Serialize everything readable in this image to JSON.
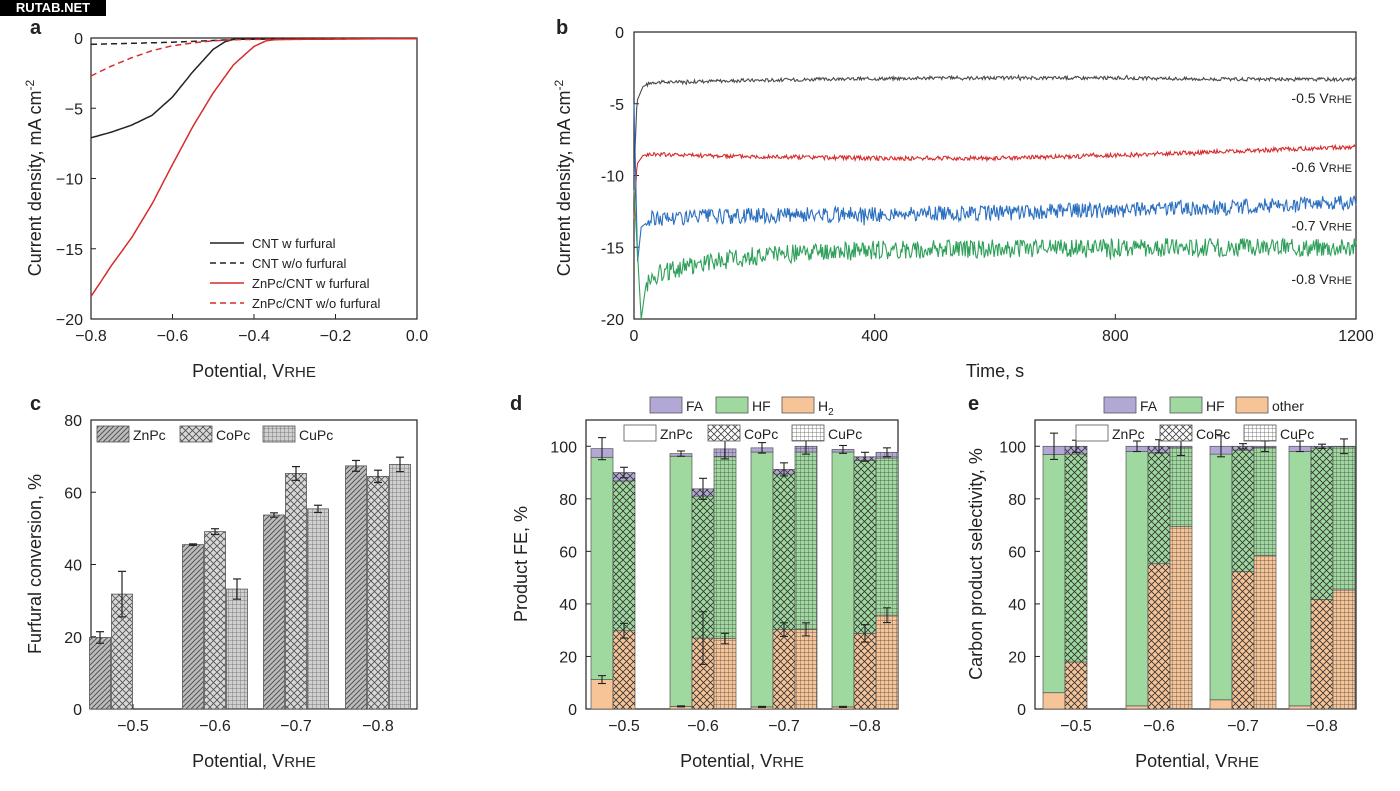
{
  "watermark": "RUTAB.NET",
  "colors": {
    "black": "#222222",
    "red": "#d62c2c",
    "gray": "#4a4a4a",
    "blue": "#2b6fc0",
    "green": "#2fa05a",
    "fa": "#b3a7d6",
    "hf": "#9fd99f",
    "orange": "#f7c498"
  },
  "panels": {
    "a": {
      "letter": "a",
      "ylabel": "Current density, mA cm",
      "ylabel_sup": "-2",
      "xlabel": "Potential, V",
      "xlabel_sub": "RHE",
      "xticks": [
        "−0.8",
        "−0.6",
        "−0.4",
        "−0.2",
        "0.0"
      ],
      "yticks": [
        "0",
        "−5",
        "−10",
        "−15",
        "−20"
      ]
    },
    "b": {
      "letter": "b",
      "ylabel": "Current density, mA cm",
      "ylabel_sup": "-2",
      "xlabel": "Time, s",
      "xticks": [
        "0",
        "400",
        "800",
        "1200"
      ],
      "yticks": [
        "0",
        "-5",
        "-10",
        "-15",
        "-20"
      ]
    },
    "c": {
      "letter": "c",
      "ylabel": "Furfural conversion, %",
      "xlabel": "Potential, V",
      "xlabel_sub": "RHE",
      "xticks": [
        "−0.5",
        "−0.6",
        "−0.7",
        "−0.8"
      ],
      "yticks": [
        "0",
        "20",
        "40",
        "60",
        "80"
      ]
    },
    "d": {
      "letter": "d",
      "ylabel": "Product FE, %",
      "xlabel": "Potential, V",
      "xlabel_sub": "RHE",
      "xticks": [
        "−0.5",
        "−0.6",
        "−0.7",
        "−0.8"
      ],
      "yticks": [
        "0",
        "20",
        "40",
        "60",
        "80",
        "100"
      ],
      "legend_products": [
        "FA",
        "HF",
        "H"
      ],
      "legend_sub": "2",
      "legend_catalysts": [
        "ZnPc",
        "CoPc",
        "CuPc"
      ]
    },
    "e": {
      "letter": "e",
      "ylabel": "Carbon product selectivity, %",
      "xlabel": "Potential, V",
      "xlabel_sub": "RHE",
      "xticks": [
        "−0.5",
        "−0.6",
        "−0.7",
        "−0.8"
      ],
      "yticks": [
        "0",
        "20",
        "40",
        "60",
        "80",
        "100"
      ],
      "legend_products": [
        "FA",
        "HF",
        "other"
      ],
      "legend_catalysts": [
        "ZnPc",
        "CoPc",
        "CuPc"
      ]
    }
  },
  "chart_data": [
    {
      "type": "line",
      "panel": "a",
      "xlabel": "Potential, VRHE",
      "ylabel": "Current density, mA cm-2",
      "xlim": [
        -0.8,
        0.0
      ],
      "ylim": [
        -20,
        0
      ],
      "series": [
        {
          "name": "CNT w furfural",
          "color": "#222222",
          "dash": false,
          "x": [
            -0.8,
            -0.75,
            -0.7,
            -0.65,
            -0.6,
            -0.55,
            -0.5,
            -0.47,
            -0.45,
            -0.4,
            -0.3,
            -0.2,
            -0.1,
            0.0
          ],
          "y": [
            -7.1,
            -6.7,
            -6.2,
            -5.5,
            -4.2,
            -2.4,
            -0.8,
            -0.25,
            -0.1,
            -0.08,
            -0.06,
            -0.05,
            -0.04,
            -0.03
          ]
        },
        {
          "name": "CNT w/o furfural",
          "color": "#222222",
          "dash": true,
          "x": [
            -0.8,
            -0.7,
            -0.6,
            -0.5,
            -0.45,
            -0.4,
            -0.3,
            -0.2,
            -0.1,
            0.0
          ],
          "y": [
            -0.45,
            -0.38,
            -0.3,
            -0.18,
            -0.1,
            -0.07,
            -0.05,
            -0.04,
            -0.03,
            -0.02
          ]
        },
        {
          "name": "ZnPc/CNT w furfural",
          "color": "#d62c2c",
          "dash": false,
          "x": [
            -0.8,
            -0.75,
            -0.7,
            -0.65,
            -0.6,
            -0.55,
            -0.5,
            -0.45,
            -0.4,
            -0.37,
            -0.35,
            -0.3,
            -0.2,
            -0.1,
            0.0
          ],
          "y": [
            -18.4,
            -16.2,
            -14.2,
            -11.8,
            -9.0,
            -6.3,
            -3.9,
            -1.9,
            -0.6,
            -0.2,
            -0.12,
            -0.1,
            -0.08,
            -0.06,
            -0.05
          ]
        },
        {
          "name": "ZnPc/CNT w/o furfural",
          "color": "#d62c2c",
          "dash": true,
          "x": [
            -0.8,
            -0.75,
            -0.7,
            -0.65,
            -0.6,
            -0.55,
            -0.5,
            -0.45,
            -0.4,
            -0.3,
            -0.2,
            -0.1,
            0.0
          ],
          "y": [
            -2.7,
            -2.0,
            -1.4,
            -0.9,
            -0.55,
            -0.35,
            -0.2,
            -0.12,
            -0.1,
            -0.08,
            -0.06,
            -0.05,
            -0.04
          ]
        }
      ]
    },
    {
      "type": "line",
      "panel": "b",
      "xlabel": "Time, s",
      "ylabel": "Current density, mA cm-2",
      "xlim": [
        0,
        1200
      ],
      "ylim": [
        -20,
        0
      ],
      "series": [
        {
          "name": "-0.5 VRHE",
          "color": "#4a4a4a",
          "x": [
            0,
            5,
            15,
            30,
            60,
            150,
            300,
            500,
            800,
            1000,
            1200
          ],
          "y": [
            -10,
            -4.8,
            -3.8,
            -3.5,
            -3.5,
            -3.4,
            -3.3,
            -3.2,
            -3.2,
            -3.3,
            -3.3
          ],
          "noise": 0.12,
          "label_y": -4.6
        },
        {
          "name": "-0.6 VRHE",
          "color": "#d62c2c",
          "x": [
            0,
            5,
            15,
            30,
            100,
            250,
            400,
            600,
            800,
            1000,
            1200
          ],
          "y": [
            -13,
            -9.2,
            -8.6,
            -8.5,
            -8.6,
            -8.7,
            -8.8,
            -8.8,
            -8.6,
            -8.3,
            -8.0
          ],
          "noise": 0.15,
          "label_y": -9.4
        },
        {
          "name": "-0.7 VRHE",
          "color": "#2b6fc0",
          "x": [
            0,
            6,
            12,
            30,
            80,
            200,
            400,
            600,
            800,
            1000,
            1200
          ],
          "y": [
            -5,
            -16,
            -13.6,
            -13.0,
            -12.9,
            -12.8,
            -12.7,
            -12.6,
            -12.4,
            -12.2,
            -11.9
          ],
          "noise": 0.55,
          "label_y": -13.5
        },
        {
          "name": "-0.8 VRHE",
          "color": "#2fa05a",
          "x": [
            0,
            12,
            20,
            40,
            100,
            200,
            400,
            600,
            800,
            1000,
            1200
          ],
          "y": [
            -11,
            -20,
            -17.6,
            -16.8,
            -16.2,
            -15.6,
            -15.2,
            -15.1,
            -15.0,
            -15.0,
            -15.0
          ],
          "noise": 0.65,
          "label_y": -17.2
        }
      ]
    },
    {
      "type": "bar",
      "panel": "c",
      "xlabel": "Potential, VRHE",
      "ylabel": "Furfural conversion, %",
      "ylim": [
        0,
        80
      ],
      "categories": [
        "−0.5",
        "−0.6",
        "−0.7",
        "−0.8"
      ],
      "series": [
        {
          "name": "ZnPc",
          "pattern": "diag",
          "values": [
            19.8,
            45.5,
            53.7,
            67.3
          ],
          "errors": [
            1.6,
            0.2,
            0.6,
            1.5
          ]
        },
        {
          "name": "CoPc",
          "pattern": "cross",
          "values": [
            31.8,
            49.1,
            65.2,
            64.4
          ],
          "errors": [
            6.3,
            0.8,
            1.9,
            1.7
          ]
        },
        {
          "name": "CuPc",
          "pattern": "grid",
          "values": [
            null,
            33.2,
            55.4,
            67.7
          ],
          "errors": [
            null,
            2.8,
            1.0,
            2.0
          ]
        }
      ]
    },
    {
      "type": "bar",
      "panel": "d",
      "stacked": true,
      "xlabel": "Potential, VRHE",
      "ylabel": "Product FE, %",
      "ylim": [
        0,
        110
      ],
      "categories": [
        "−0.5",
        "−0.6",
        "−0.7",
        "−0.8"
      ],
      "catalysts": [
        {
          "name": "ZnPc",
          "pattern": "none",
          "H2": [
            11.2,
            1.0,
            0.8,
            0.8
          ],
          "HF": [
            84.6,
            95.2,
            97.0,
            97.0
          ],
          "FA": [
            3.3,
            1.0,
            1.6,
            1.0
          ],
          "err_h2": [
            1.5,
            0.2,
            0.2,
            0.2
          ],
          "err_top": [
            4.2,
            1.0,
            2.0,
            1.5
          ]
        },
        {
          "name": "CoPc",
          "pattern": "cross",
          "H2": [
            29.8,
            27.0,
            30.2,
            28.8
          ],
          "HF": [
            57.0,
            54.0,
            59.2,
            65.8
          ],
          "FA": [
            3.2,
            2.8,
            1.8,
            1.4
          ],
          "err_h2": [
            2.8,
            10.0,
            2.6,
            3.3
          ],
          "err_top": [
            2.0,
            4.0,
            2.5,
            1.7
          ]
        },
        {
          "name": "CuPc",
          "pattern": "grid",
          "H2": [
            null,
            26.8,
            30.3,
            35.7
          ],
          "HF": [
            null,
            69.2,
            67.5,
            59.8
          ],
          "FA": [
            null,
            3.0,
            2.2,
            2.2
          ],
          "err_h2": [
            null,
            2.0,
            2.5,
            2.8
          ],
          "err_top": [
            null,
            3.8,
            3.0,
            1.7
          ]
        }
      ]
    },
    {
      "type": "bar",
      "panel": "e",
      "stacked": true,
      "xlabel": "Potential, VRHE",
      "ylabel": "Carbon product selectivity, %",
      "ylim": [
        0,
        110
      ],
      "categories": [
        "−0.5",
        "−0.6",
        "−0.7",
        "−0.8"
      ],
      "catalysts": [
        {
          "name": "ZnPc",
          "pattern": "none",
          "other": [
            6.2,
            1.2,
            3.5,
            1.2
          ],
          "HF": [
            90.7,
            96.8,
            93.5,
            96.8
          ],
          "FA": [
            3.1,
            2.0,
            3.0,
            2.0
          ],
          "err_top": [
            5.0,
            2.0,
            4.0,
            2.0
          ]
        },
        {
          "name": "CoPc",
          "pattern": "cross",
          "other": [
            17.9,
            55.3,
            52.3,
            41.7
          ],
          "HF": [
            79.1,
            42.2,
            46.2,
            57.6
          ],
          "FA": [
            3.0,
            2.5,
            1.5,
            0.7
          ],
          "err_top": [
            2.3,
            2.5,
            1.0,
            0.8
          ]
        },
        {
          "name": "CuPc",
          "pattern": "grid",
          "other": [
            null,
            69.4,
            58.5,
            45.3
          ],
          "HF": [
            null,
            30.0,
            41.0,
            54.5
          ],
          "FA": [
            null,
            0.6,
            0.5,
            0.2
          ],
          "err_top": [
            null,
            3.5,
            2.0,
            2.8
          ]
        }
      ]
    }
  ]
}
